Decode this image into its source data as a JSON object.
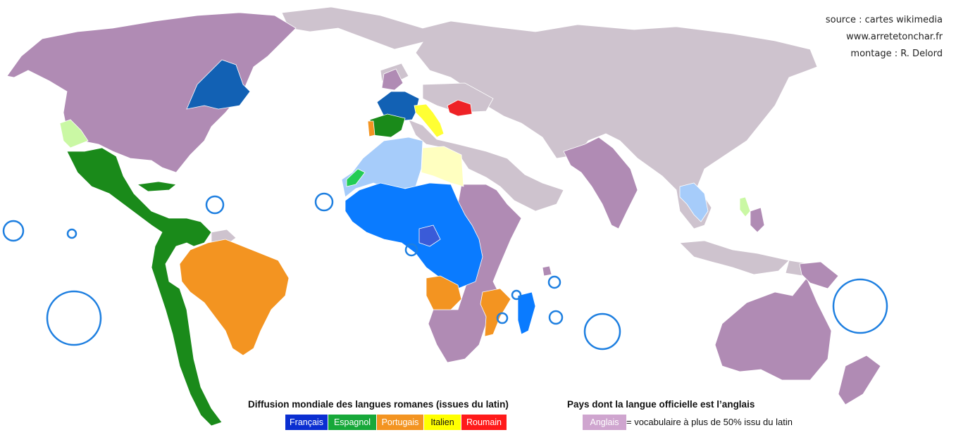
{
  "credits": {
    "source": "source : cartes wikimedia",
    "website": "www.arretetonchar.fr",
    "montage": "montage : R. Delord"
  },
  "legend": {
    "romance_title": "Diffusion mondiale des langues romanes (issues du latin)",
    "english_title": "Pays dont la langue officielle est l’anglais",
    "languages": [
      {
        "label": "Français",
        "color": "#0b2fd1",
        "text_color": "#ffffff"
      },
      {
        "label": "Espagnol",
        "color": "#17a83a",
        "text_color": "#ffffff"
      },
      {
        "label": "Portugais",
        "color": "#f39421",
        "text_color": "#ffffff"
      },
      {
        "label": "Italien",
        "color": "#ffff00",
        "text_color": "#111111"
      },
      {
        "label": "Roumain",
        "color": "#ff1a1a",
        "text_color": "#ffffff"
      }
    ],
    "english": {
      "label": "Anglais",
      "color": "#cfa5cf",
      "text_color": "#ffffff"
    },
    "english_note": "= vocabulaire à plus de 50% issu du latin"
  },
  "map_colors": {
    "other": "#cec3ce",
    "english": "#b08bb4",
    "french": "#1261b4",
    "french_africa": "#0a7bff",
    "french_light": "#a6ccfa",
    "spanish": "#1a8a1a",
    "spanish_light": "#caf8a4",
    "portuguese": "#f39421",
    "italian": "#ffff33",
    "italian_light": "#ffffc0",
    "romanian": "#ee2226",
    "island_circle": "#1e7fe0",
    "ocean": "#ffffff"
  }
}
